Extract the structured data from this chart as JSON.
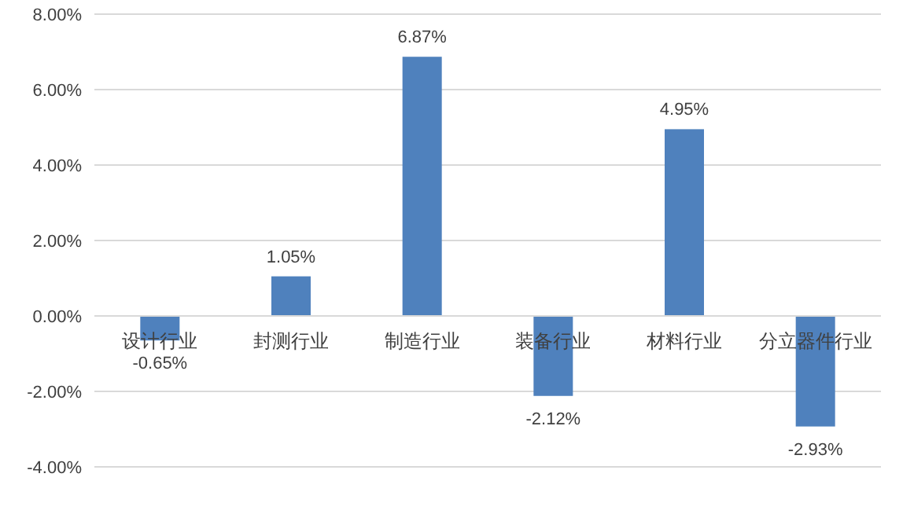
{
  "chart_data": {
    "type": "bar",
    "categories": [
      "设计行业",
      "封测行业",
      "制造行业",
      "装备行业",
      "材料行业",
      "分立器件行业"
    ],
    "values": [
      -0.65,
      1.05,
      6.87,
      -2.12,
      4.95,
      -2.93
    ],
    "value_labels": [
      "-0.65%",
      "1.05%",
      "6.87%",
      "-2.12%",
      "4.95%",
      "-2.93%"
    ],
    "color": "#4f81bd",
    "ylim": [
      -4,
      8
    ],
    "yticks": [
      {
        "value": -4,
        "label": "-4.00%"
      },
      {
        "value": -2,
        "label": "-2.00%"
      },
      {
        "value": 0,
        "label": "0.00%"
      },
      {
        "value": 2,
        "label": "2.00%"
      },
      {
        "value": 4,
        "label": "4.00%"
      },
      {
        "value": 6,
        "label": "6.00%"
      },
      {
        "value": 8,
        "label": "8.00%"
      }
    ],
    "grid": "y"
  }
}
